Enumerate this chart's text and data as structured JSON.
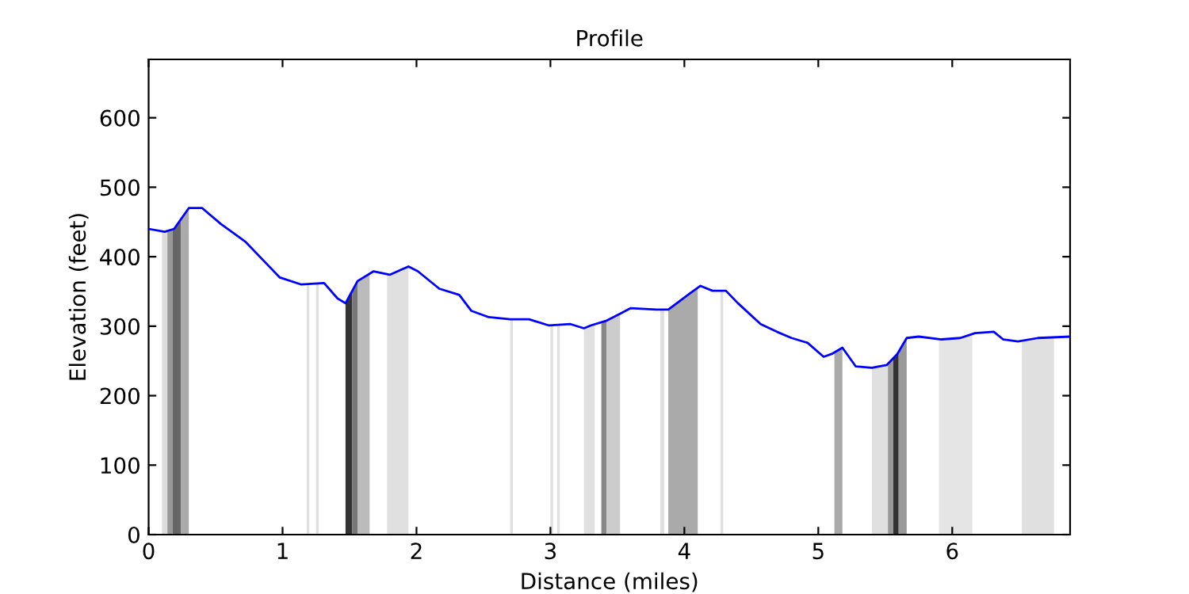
{
  "chart_data": {
    "type": "line",
    "title": "Profile",
    "xlabel": "Distance (miles)",
    "ylabel": "Elevation (feet)",
    "xlim": [
      0,
      6.88
    ],
    "ylim": [
      0,
      684
    ],
    "xticks": [
      0,
      1,
      2,
      3,
      4,
      5,
      6
    ],
    "yticks": [
      0,
      100,
      200,
      300,
      400,
      500,
      600
    ],
    "grid": false,
    "legend": false,
    "series": [
      {
        "color": "#0000ff",
        "x": [
          0,
          0.12,
          0.19,
          0.3,
          0.4,
          0.54,
          0.62,
          0.72,
          0.88,
          0.98,
          1.14,
          1.31,
          1.41,
          1.47,
          1.56,
          1.68,
          1.8,
          1.94,
          2.01,
          2.17,
          2.32,
          2.41,
          2.54,
          2.7,
          2.84,
          2.99,
          3.15,
          3.25,
          3.3,
          3.42,
          3.53,
          3.6,
          3.79,
          3.88,
          4.04,
          4.12,
          4.21,
          4.31,
          4.4,
          4.57,
          4.69,
          4.8,
          4.92,
          5.04,
          5.1,
          5.18,
          5.28,
          5.4,
          5.51,
          5.59,
          5.66,
          5.75,
          5.92,
          6.06,
          6.17,
          6.31,
          6.38,
          6.49,
          6.64,
          6.88
        ],
        "values": [
          440,
          436,
          440,
          470,
          470,
          447,
          436,
          422,
          390,
          370,
          360,
          362,
          340,
          333,
          365,
          379,
          374,
          386,
          379,
          354,
          345,
          322,
          313,
          310,
          310,
          301,
          303,
          297,
          301,
          308,
          319,
          326,
          324,
          324,
          347,
          358,
          351,
          351,
          333,
          303,
          292,
          283,
          276,
          256,
          260,
          269,
          242,
          240,
          244,
          260,
          283,
          285,
          281,
          283,
          290,
          292,
          281,
          278,
          283,
          285
        ]
      }
    ],
    "bands": [
      {
        "axis": "x",
        "from": 0.1,
        "to": 0.14,
        "color": "#dddddd"
      },
      {
        "axis": "x",
        "from": 0.14,
        "to": 0.18,
        "color": "#999999"
      },
      {
        "axis": "x",
        "from": 0.18,
        "to": 0.24,
        "color": "#666666"
      },
      {
        "axis": "x",
        "from": 0.24,
        "to": 0.3,
        "color": "#aaaaaa"
      },
      {
        "axis": "x",
        "from": 1.18,
        "to": 1.2,
        "color": "#e0e0e0"
      },
      {
        "axis": "x",
        "from": 1.25,
        "to": 1.27,
        "color": "#e0e0e0"
      },
      {
        "axis": "x",
        "from": 1.47,
        "to": 1.52,
        "color": "#333333"
      },
      {
        "axis": "x",
        "from": 1.52,
        "to": 1.56,
        "color": "#777777"
      },
      {
        "axis": "x",
        "from": 1.56,
        "to": 1.65,
        "color": "#bbbbbb"
      },
      {
        "axis": "x",
        "from": 1.78,
        "to": 1.94,
        "color": "#e0e0e0"
      },
      {
        "axis": "x",
        "from": 2.7,
        "to": 2.72,
        "color": "#e0e0e0"
      },
      {
        "axis": "x",
        "from": 3.0,
        "to": 3.02,
        "color": "#e0e0e0"
      },
      {
        "axis": "x",
        "from": 3.05,
        "to": 3.07,
        "color": "#e0e0e0"
      },
      {
        "axis": "x",
        "from": 3.25,
        "to": 3.33,
        "color": "#e0e0e0"
      },
      {
        "axis": "x",
        "from": 3.38,
        "to": 3.42,
        "color": "#888888"
      },
      {
        "axis": "x",
        "from": 3.42,
        "to": 3.52,
        "color": "#cccccc"
      },
      {
        "axis": "x",
        "from": 3.82,
        "to": 3.85,
        "color": "#e0e0e0"
      },
      {
        "axis": "x",
        "from": 3.88,
        "to": 4.1,
        "color": "#aaaaaa"
      },
      {
        "axis": "x",
        "from": 4.27,
        "to": 4.29,
        "color": "#e0e0e0"
      },
      {
        "axis": "x",
        "from": 5.12,
        "to": 5.18,
        "color": "#aaaaaa"
      },
      {
        "axis": "x",
        "from": 5.4,
        "to": 5.52,
        "color": "#e0e0e0"
      },
      {
        "axis": "x",
        "from": 5.52,
        "to": 5.56,
        "color": "#999999"
      },
      {
        "axis": "x",
        "from": 5.56,
        "to": 5.6,
        "color": "#333333"
      },
      {
        "axis": "x",
        "from": 5.6,
        "to": 5.66,
        "color": "#999999"
      },
      {
        "axis": "x",
        "from": 5.9,
        "to": 6.15,
        "color": "#e5e5e5"
      },
      {
        "axis": "x",
        "from": 6.52,
        "to": 6.76,
        "color": "#e0e0e0"
      }
    ]
  }
}
